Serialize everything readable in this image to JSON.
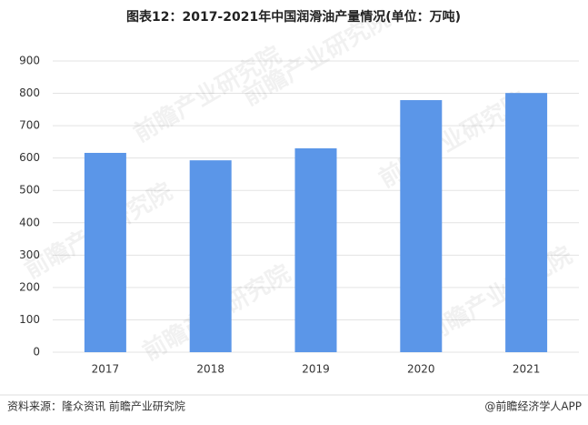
{
  "chart_data": {
    "type": "bar",
    "title": "图表12：2017-2021年中国润滑油产量情况(单位：万吨)",
    "categories": [
      "2017",
      "2018",
      "2019",
      "2020",
      "2021"
    ],
    "values": [
      616,
      593,
      630,
      779,
      801
    ],
    "color": "#5b96e8",
    "ylim": [
      0,
      900
    ],
    "yticks": [
      0,
      100,
      200,
      300,
      400,
      500,
      600,
      700,
      800,
      900
    ],
    "grid": true,
    "source": "资料来源：隆众资讯 前瞻产业研究院",
    "credit": "@前瞻经济学人APP",
    "watermark": "前瞻产业研究院"
  }
}
